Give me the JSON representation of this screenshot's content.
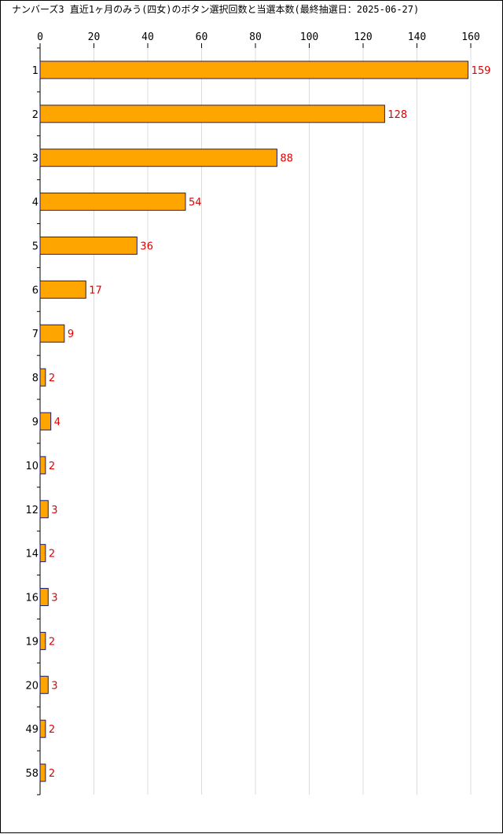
{
  "chart_data": {
    "type": "bar",
    "orientation": "horizontal",
    "title": "ナンバーズ3 直近1ヶ月のみう(四女)のボタン選択回数と当選本数(最終抽選日：2025-06-27)",
    "categories": [
      "1",
      "2",
      "3",
      "4",
      "5",
      "6",
      "7",
      "8",
      "9",
      "10",
      "12",
      "14",
      "16",
      "19",
      "20",
      "49",
      "58"
    ],
    "values": [
      159,
      128,
      88,
      54,
      36,
      17,
      9,
      2,
      4,
      2,
      3,
      2,
      3,
      2,
      3,
      2,
      2
    ],
    "xlim": [
      0,
      160
    ],
    "xticks": [
      0,
      20,
      40,
      60,
      80,
      100,
      120,
      140,
      160
    ],
    "x_axis_position": "top",
    "grid": true,
    "bar_color": "#FFA500",
    "bar_edge_color": "#1a1a7a",
    "value_label_color": "#E00000",
    "xlabel": "",
    "ylabel": ""
  }
}
